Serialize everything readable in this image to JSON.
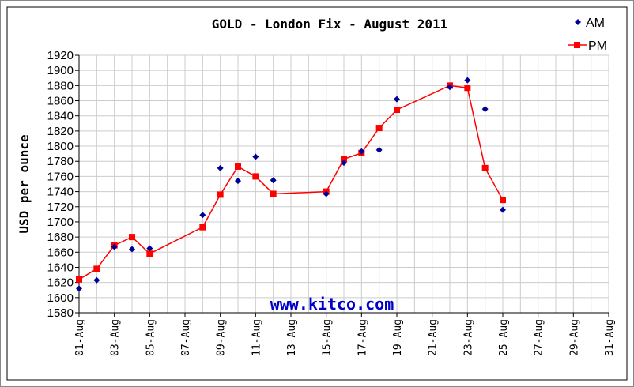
{
  "chart_data": {
    "type": "scatter",
    "title": "GOLD - London Fix - August 2011",
    "ylabel": "USD per ounce",
    "xlabel": "",
    "ylim": [
      1580,
      1920
    ],
    "yticks": [
      1580,
      1600,
      1620,
      1640,
      1660,
      1680,
      1700,
      1720,
      1740,
      1760,
      1780,
      1800,
      1820,
      1840,
      1860,
      1880,
      1900,
      1920
    ],
    "x_days": [
      1,
      31
    ],
    "xtick_labels": [
      "01-Aug",
      "03-Aug",
      "05-Aug",
      "07-Aug",
      "09-Aug",
      "11-Aug",
      "13-Aug",
      "15-Aug",
      "17-Aug",
      "19-Aug",
      "21-Aug",
      "23-Aug",
      "25-Aug",
      "27-Aug",
      "29-Aug",
      "31-Aug"
    ],
    "grid": true,
    "legend": "top-right",
    "watermark": "www.kitco.com",
    "series": [
      {
        "name": "AM",
        "marker": "diamond",
        "color": "#000099",
        "x": [
          "01-Aug",
          "02-Aug",
          "03-Aug",
          "04-Aug",
          "05-Aug",
          "08-Aug",
          "09-Aug",
          "10-Aug",
          "11-Aug",
          "12-Aug",
          "15-Aug",
          "16-Aug",
          "17-Aug",
          "18-Aug",
          "19-Aug",
          "22-Aug",
          "23-Aug",
          "24-Aug",
          "25-Aug"
        ],
        "values": [
          1612,
          1623,
          1667,
          1664,
          1665,
          1709,
          1771,
          1754,
          1786,
          1755,
          1737,
          1778,
          1793,
          1795,
          1862,
          1878,
          1887,
          1849,
          1716
        ]
      },
      {
        "name": "PM",
        "marker": "square-line",
        "color": "#ff0000",
        "x": [
          "01-Aug",
          "02-Aug",
          "03-Aug",
          "04-Aug",
          "05-Aug",
          "08-Aug",
          "09-Aug",
          "10-Aug",
          "11-Aug",
          "12-Aug",
          "15-Aug",
          "16-Aug",
          "17-Aug",
          "18-Aug",
          "19-Aug",
          "22-Aug",
          "23-Aug",
          "24-Aug",
          "25-Aug"
        ],
        "values": [
          1624,
          1638,
          1669,
          1680,
          1658,
          1693,
          1736,
          1773,
          1760,
          1737,
          1740,
          1783,
          1791,
          1824,
          1848,
          1880,
          1877,
          1771,
          1729
        ]
      }
    ]
  }
}
